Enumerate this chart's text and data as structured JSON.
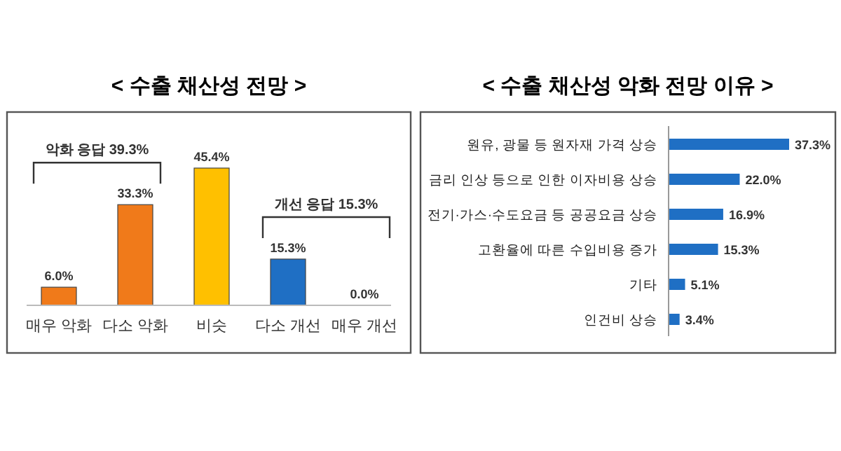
{
  "chart_data": [
    {
      "type": "bar",
      "title": "< 수출 채산성 전망 >",
      "categories": [
        "매우 악화",
        "다소 악화",
        "비슷",
        "다소 개선",
        "매우 개선"
      ],
      "values": [
        6.0,
        33.3,
        45.4,
        15.3,
        0.0
      ],
      "colors": [
        "#f07a1a",
        "#f07a1a",
        "#ffc000",
        "#1f6fc4",
        "#1f6fc4"
      ],
      "value_labels": [
        "6.0%",
        "33.3%",
        "45.4%",
        "15.3%",
        "0.0%"
      ],
      "annotations": [
        "악화 응답 39.3%",
        "개선 응답 15.3%"
      ]
    },
    {
      "type": "bar",
      "orientation": "horizontal",
      "title": "< 수출 채산성 악화 전망 이유 >",
      "categories": [
        "원유, 광물 등 원자재 가격 상승",
        "금리 인상 등으로 인한 이자비용 상승",
        "전기·가스·수도요금 등 공공요금 상승",
        "고환율에 따른 수입비용 증가",
        "기타",
        "인건비 상승"
      ],
      "values": [
        37.3,
        22.0,
        16.9,
        15.3,
        5.1,
        3.4
      ],
      "color": "#1f6fc4",
      "value_labels": [
        "37.3%",
        "22.0%",
        "16.9%",
        "15.3%",
        "5.1%",
        "3.4%"
      ]
    }
  ]
}
